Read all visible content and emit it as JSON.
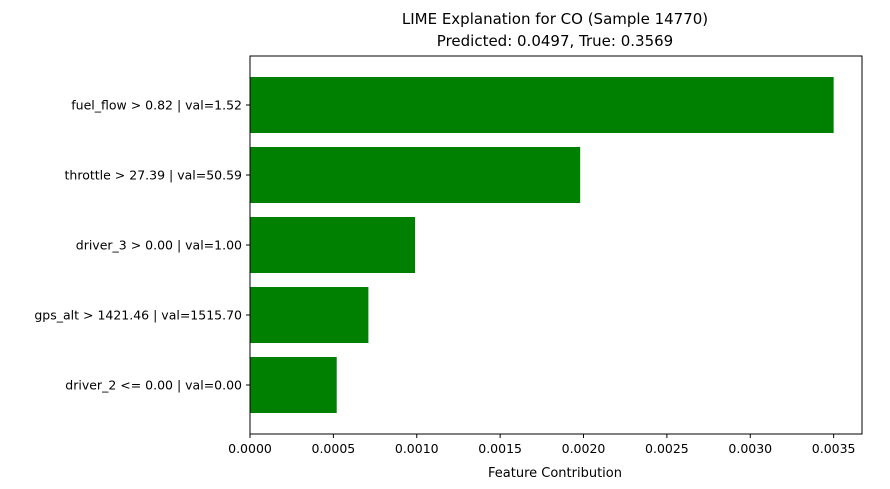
{
  "chart_data": {
    "type": "bar",
    "orientation": "horizontal",
    "title_lines": [
      "LIME Explanation for CO (Sample 14770)",
      "Predicted: 0.0497, True: 0.3569"
    ],
    "xlabel": "Feature Contribution",
    "ylabel": "",
    "xlim": [
      0,
      0.00367
    ],
    "x_ticks": [
      0.0,
      0.0005,
      0.001,
      0.0015,
      0.002,
      0.0025,
      0.003,
      0.0035
    ],
    "x_tick_labels": [
      "0.0000",
      "0.0005",
      "0.0010",
      "0.0015",
      "0.0020",
      "0.0025",
      "0.0030",
      "0.0035"
    ],
    "categories": [
      "fuel_flow > 0.82 | val=1.52",
      "throttle > 27.39 | val=50.59",
      "driver_3 > 0.00 | val=1.00",
      "gps_alt > 1421.46 | val=1515.70",
      "driver_2 <= 0.00 | val=0.00"
    ],
    "values": [
      0.0035,
      0.00198,
      0.00099,
      0.00071,
      0.00052
    ],
    "bar_color": "#008000",
    "grid": false,
    "legend": "none"
  }
}
